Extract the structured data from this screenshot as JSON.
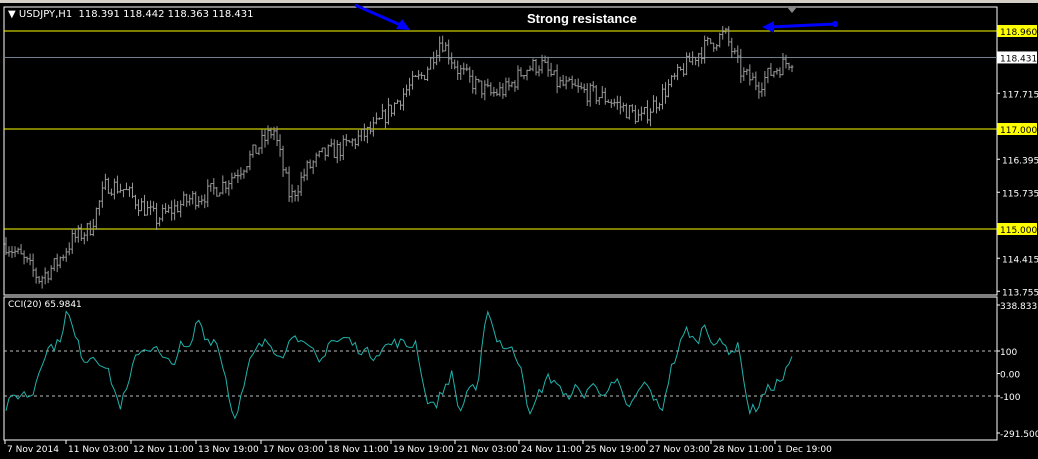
{
  "header": {
    "symbol": "USDJPY,H1",
    "ohlc": "118.391 118.442 118.363 118.431",
    "menu_icon": "triangle-down-icon"
  },
  "annotation": "Strong resistance",
  "colors": {
    "background": "#000000",
    "bars": "#9a9a9a",
    "levels": "#ffff00",
    "current_price_line": "#708090",
    "cci": "#20b2aa",
    "arrows": "#0000ff"
  },
  "price_axis": {
    "ticks": [
      "117.715",
      "116.395",
      "115.735",
      "114.415",
      "113.755"
    ],
    "levels": [
      "118.960",
      "117.000",
      "115.000"
    ],
    "current": "118.431"
  },
  "cci": {
    "title": "CCI(20) 65.9841",
    "ticks": [
      "338.833",
      "100",
      "0.00",
      "-100",
      "-291.5004"
    ]
  },
  "time_axis": [
    "7 Nov 2014",
    "11 Nov 03:00",
    "12 Nov 11:00",
    "13 Nov 19:00",
    "17 Nov 03:00",
    "18 Nov 11:00",
    "19 Nov 19:00",
    "21 Nov 03:00",
    "24 Nov 11:00",
    "25 Nov 19:00",
    "27 Nov 03:00",
    "28 Nov 11:00",
    "1 Dec 19:00"
  ],
  "chart_data": {
    "type": "ohlc",
    "ylim": [
      113.4,
      119.44
    ],
    "close_path": [
      114.7,
      114.4,
      114.0,
      114.3,
      114.8,
      115.0,
      115.9,
      115.8,
      115.5,
      115.2,
      115.4,
      115.6,
      115.7,
      115.9,
      116.2,
      116.6,
      117.0,
      115.6,
      116.2,
      116.5,
      116.6,
      116.8,
      117.0,
      117.4,
      117.8,
      118.1,
      118.8,
      118.2,
      117.9,
      117.7,
      117.8,
      118.2,
      118.3,
      117.9,
      117.8,
      117.7,
      117.6,
      117.4,
      117.2,
      117.6,
      118.0,
      118.4,
      118.7,
      118.9,
      118.1,
      117.9,
      118.2,
      118.4
    ],
    "cci_ylim": [
      -291.5004,
      338.833
    ],
    "cci_values": [
      -150,
      -100,
      -90,
      -100,
      50,
      120,
      130,
      280,
      150,
      60,
      80,
      50,
      -20,
      -150,
      -60,
      100,
      110,
      120,
      60,
      40,
      120,
      100,
      250,
      150,
      150,
      20,
      -200,
      -100,
      60,
      120,
      140,
      100,
      90,
      200,
      120,
      100,
      40,
      150,
      140,
      160,
      120,
      100,
      80,
      110,
      130,
      140,
      120,
      140,
      -100,
      -150,
      -80,
      0,
      -180,
      -50,
      -100,
      310,
      170,
      120,
      100,
      40,
      -200,
      -90,
      -20,
      -30,
      -120,
      -60,
      -100,
      -50,
      -80,
      -70,
      -40,
      -150,
      -120,
      -40,
      -90,
      -180,
      0,
      110,
      200,
      130,
      220,
      140,
      130,
      100,
      120,
      -170,
      -150,
      -80,
      -50,
      -20,
      66
    ]
  }
}
